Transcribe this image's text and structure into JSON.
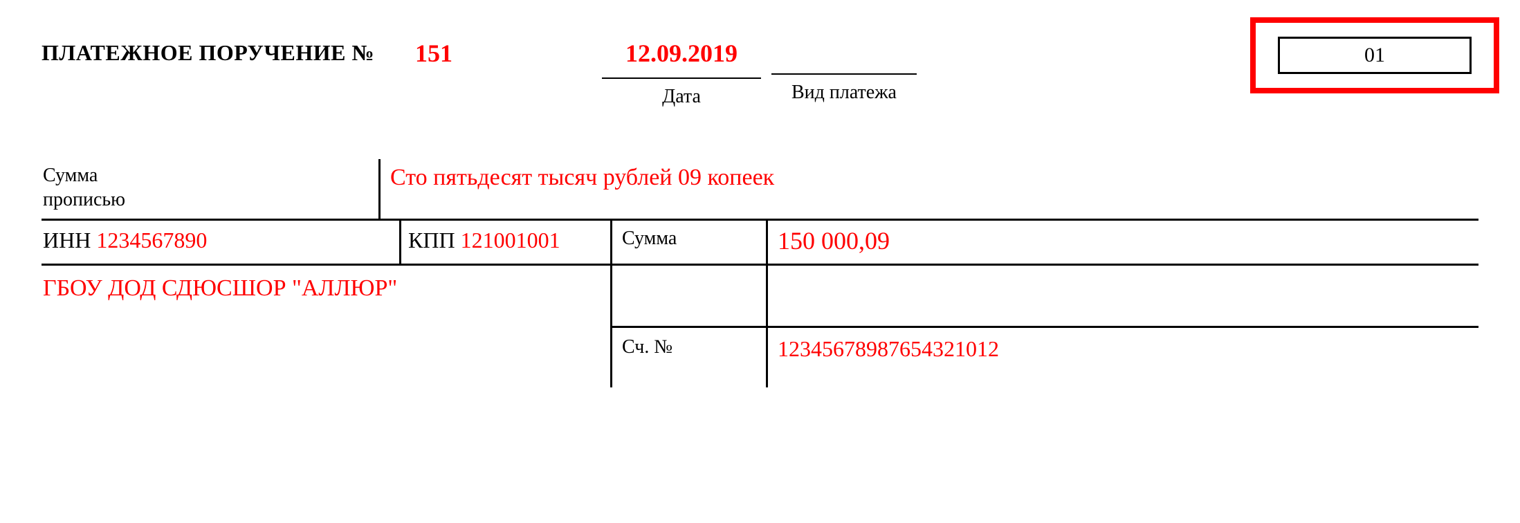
{
  "header": {
    "title": "ПЛАТЕЖНОЕ ПОРУЧЕНИЕ №",
    "doc_number": "151",
    "date_value": "12.09.2019",
    "date_label": "Дата",
    "paytype_label": "Вид платежа",
    "status_code": "01"
  },
  "sum_text": {
    "label_line1": "Сумма",
    "label_line2": "прописью",
    "value": "Сто пятьдесят тысяч рублей 09 копеек"
  },
  "payer": {
    "inn_label": "ИНН",
    "inn_value": "1234567890",
    "kpp_label": "КПП",
    "kpp_value": "121001001",
    "sum_label": "Сумма",
    "sum_value": "150 000,09",
    "name": "ГБОУ ДОД СДЮСШОР \"АЛЛЮР\"",
    "acct_label": "Сч. №",
    "acct_value": "12345678987654321012"
  },
  "style": {
    "accent_color": "#ff0000",
    "text_color": "#000000",
    "border_color": "#000000",
    "background_color": "#ffffff",
    "title_fontsize": 32,
    "value_fontsize_large": 36,
    "value_fontsize": 32,
    "label_fontsize": 28,
    "highlight_border_width": 8,
    "line_width": 3,
    "font_family": "Times New Roman"
  }
}
